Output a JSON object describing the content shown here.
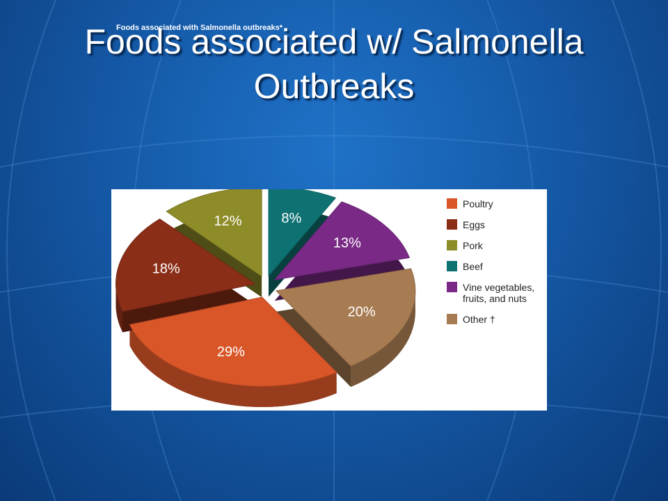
{
  "title": "Foods associated w/ Salmonella Outbreaks",
  "chart_data": {
    "type": "pie",
    "subtitle": "Foods associated with Salmonella outbreaks*",
    "categories": [
      "Beef",
      "Vine vegetables, fruits, and nuts",
      "Other †",
      "Poultry",
      "Eggs",
      "Pork"
    ],
    "values": [
      8,
      13,
      20,
      29,
      18,
      12
    ],
    "value_labels": [
      "8%",
      "13%",
      "20%",
      "29%",
      "18%",
      "12%"
    ],
    "colors": [
      "#0f7272",
      "#7a2a86",
      "#a87c52",
      "#d85628",
      "#8a2e18",
      "#8e8c28"
    ],
    "legend_order": [
      "Poultry",
      "Eggs",
      "Pork",
      "Beef",
      "Vine vegetables, fruits, and nuts",
      "Other †"
    ]
  }
}
